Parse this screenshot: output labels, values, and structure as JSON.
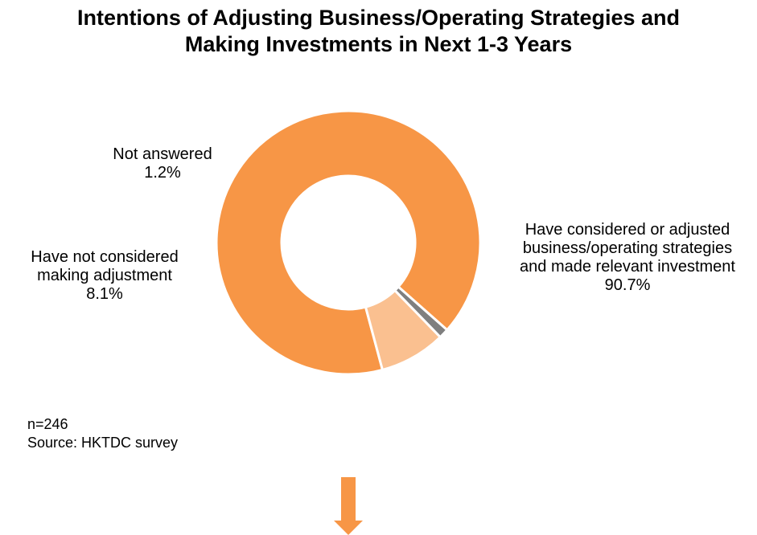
{
  "chart_data": {
    "type": "pie",
    "variant": "donut",
    "title_lines": [
      "Intentions of Adjusting Business/Operating Strategies and",
      "Making Investments in Next 1-3 Years"
    ],
    "slices": [
      {
        "label_lines": [
          "Have considered or adjusted",
          "business/operating strategies",
          "and made relevant investment"
        ],
        "value": 90.7,
        "value_label": "90.7%",
        "color": "#F79646"
      },
      {
        "label_lines": [
          "Not answered"
        ],
        "value": 1.2,
        "value_label": "1.2%",
        "color": "#7F7F7F"
      },
      {
        "label_lines": [
          "Have not considered",
          "making adjustment"
        ],
        "value": 8.1,
        "value_label": "8.1%",
        "color": "#FAC090"
      }
    ],
    "legend": "none"
  },
  "notes": {
    "sample": "n=246",
    "source": "Source: HKTDC survey"
  },
  "colors": {
    "accent": "#F79646",
    "background": "#FFFFFF"
  },
  "icons": {
    "arrow": "down-arrow-icon"
  }
}
